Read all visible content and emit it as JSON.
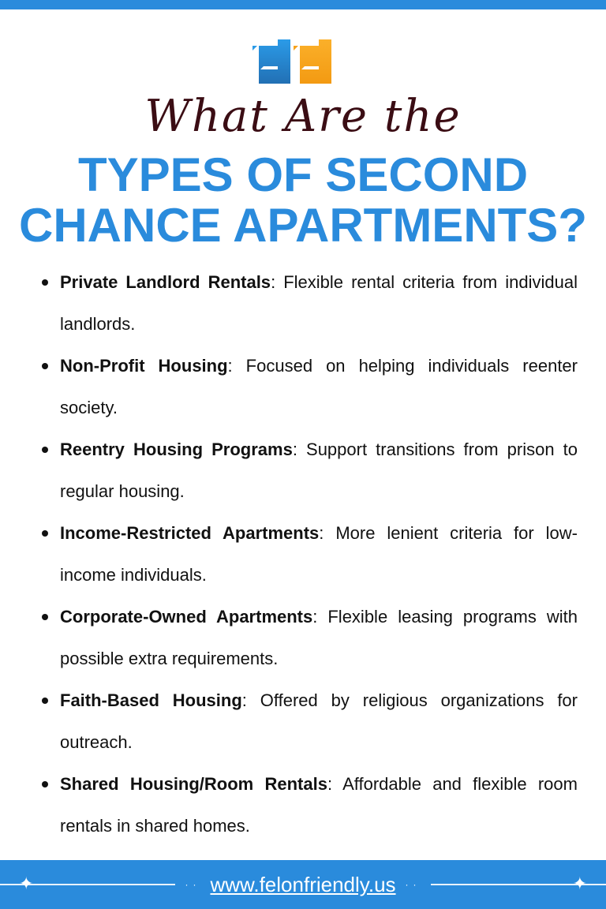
{
  "title": {
    "script": "What Are the",
    "line1": "TYPES OF SECOND",
    "line2": "CHANCE APARTMENTS?"
  },
  "colors": {
    "blue": "#2a8bdc",
    "orange": "#f7a21b",
    "maroon": "#3b0d14"
  },
  "items": [
    {
      "term": "Private Landlord Rentals",
      "desc": ": Flexible rental criteria from individual landlords."
    },
    {
      "term": "Non-Profit Housing",
      "desc": ": Focused on helping individuals reenter society."
    },
    {
      "term": "Reentry Housing Programs",
      "desc": ": Support transitions from prison to regular housing."
    },
    {
      "term": "Income-Restricted Apartments",
      "desc": ": More lenient criteria for low-income individuals."
    },
    {
      "term": "Corporate-Owned Apartments",
      "desc": ": Flexible leasing programs with possible extra requirements."
    },
    {
      "term": "Faith-Based Housing",
      "desc": ": Offered by religious organizations for outreach."
    },
    {
      "term": "Shared Housing/Room Rentals",
      "desc": ": Affordable and flexible room rentals in shared homes."
    }
  ],
  "footer": {
    "url": "www.felonfriendly.us"
  }
}
